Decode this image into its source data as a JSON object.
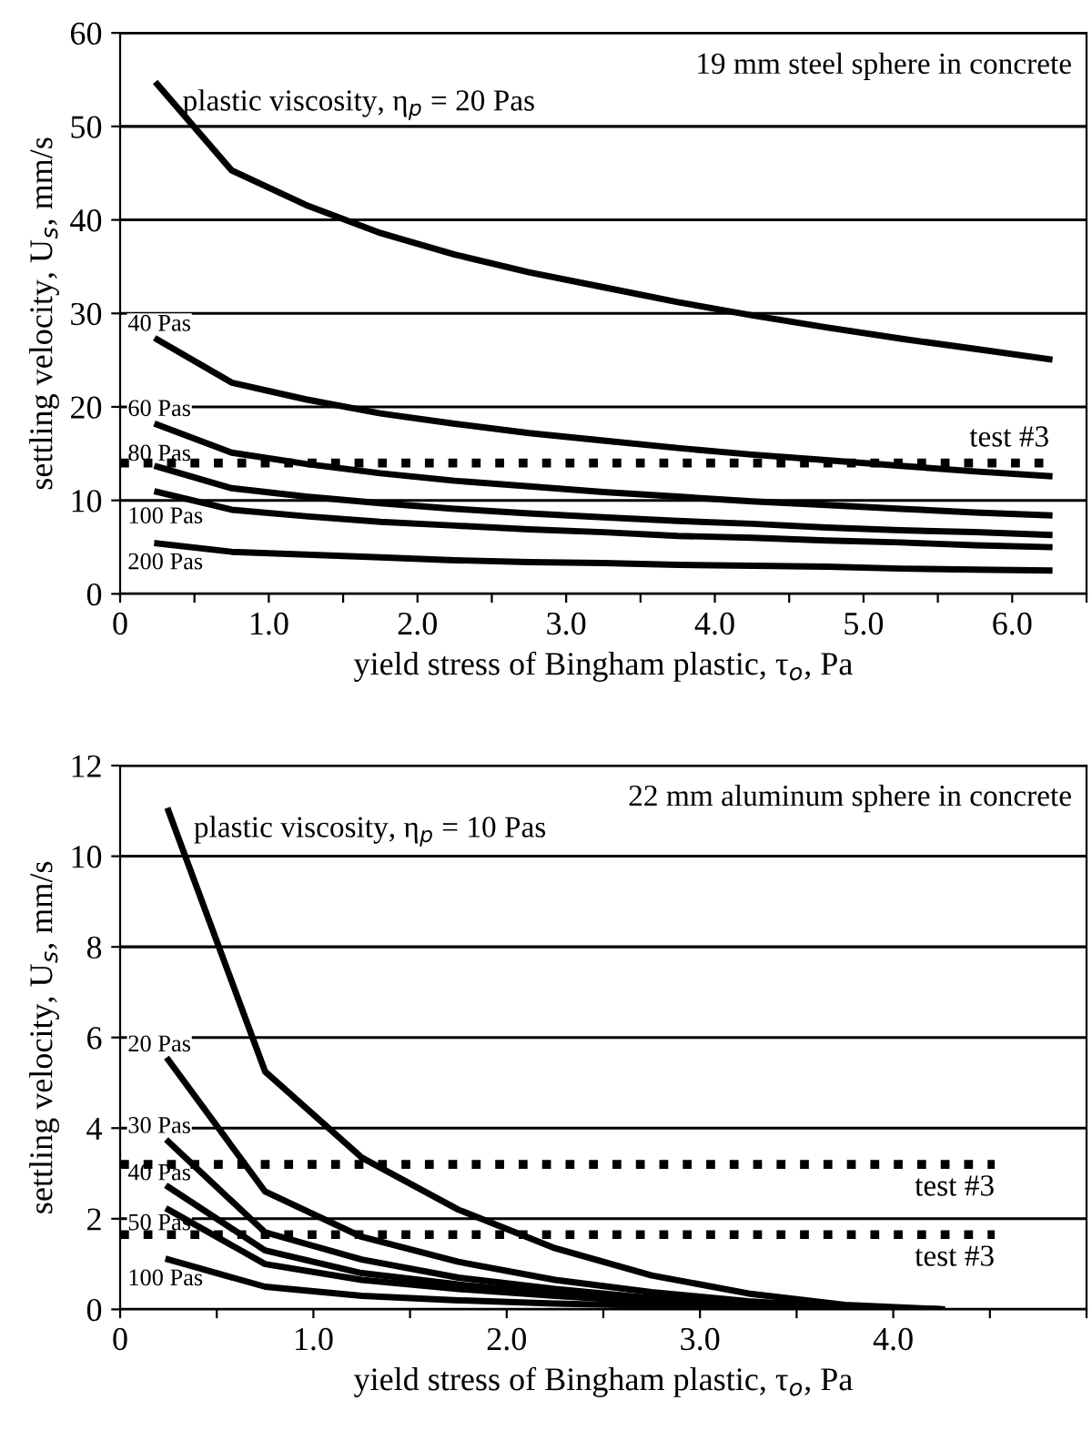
{
  "chart_data": [
    {
      "type": "line",
      "title": "19 mm steel sphere in concrete",
      "xlabel": "yield stress of Bingham plastic, τ$_{o}$, Pa",
      "ylabel": "settling velocity, U$_{s}$, mm/s",
      "x": [
        0.25,
        0.75,
        1.25,
        1.75,
        2.25,
        2.75,
        3.25,
        3.75,
        4.25,
        4.75,
        5.25,
        5.75,
        6.25
      ],
      "series": [
        {
          "name": "plastic viscosity, η$_{p}$ = 20 Pas",
          "color": "#000000",
          "values": [
            54.5,
            45.3,
            41.6,
            38.6,
            36.3,
            34.4,
            32.8,
            31.2,
            29.8,
            28.5,
            27.3,
            26.2,
            25.1
          ]
        },
        {
          "name": "40 Pas",
          "color": "#000000",
          "values": [
            27.2,
            22.6,
            20.8,
            19.3,
            18.2,
            17.2,
            16.4,
            15.6,
            14.9,
            14.3,
            13.7,
            13.1,
            12.6
          ]
        },
        {
          "name": "60 Pas",
          "color": "#000000",
          "values": [
            18.1,
            15.1,
            13.9,
            12.9,
            12.1,
            11.5,
            10.9,
            10.4,
            9.9,
            9.5,
            9.1,
            8.7,
            8.4
          ]
        },
        {
          "name": "80 Pas",
          "color": "#000000",
          "values": [
            13.6,
            11.3,
            10.4,
            9.7,
            9.1,
            8.6,
            8.2,
            7.8,
            7.5,
            7.1,
            6.8,
            6.6,
            6.3
          ]
        },
        {
          "name": "100 Pas",
          "color": "#000000",
          "values": [
            10.9,
            9.0,
            8.3,
            7.7,
            7.3,
            6.9,
            6.6,
            6.2,
            6.0,
            5.7,
            5.5,
            5.2,
            5.0
          ]
        },
        {
          "name": "200 Pas",
          "color": "#000000",
          "values": [
            5.4,
            4.5,
            4.2,
            3.9,
            3.6,
            3.4,
            3.3,
            3.1,
            3.0,
            2.9,
            2.7,
            2.6,
            2.5
          ]
        }
      ],
      "xlim": [
        0,
        6.5
      ],
      "ylim": [
        0,
        60
      ],
      "xticks": [
        0,
        {
          "value": 0.5,
          "label": null
        },
        {
          "value": 1,
          "label": "1.0"
        },
        {
          "value": 1.5,
          "label": null
        },
        {
          "value": 2,
          "label": "2.0"
        },
        {
          "value": 2.5,
          "label": null
        },
        {
          "value": 3,
          "label": "3.0"
        },
        {
          "value": 3.5,
          "label": null
        },
        {
          "value": 4,
          "label": "4.0"
        },
        {
          "value": 4.5,
          "label": null
        },
        {
          "value": 5,
          "label": "5.0"
        },
        {
          "value": 5.5,
          "label": null
        },
        {
          "value": 6,
          "label": "6.0"
        },
        {
          "value": 6.5,
          "label": null
        }
      ],
      "yticks": [
        0,
        10,
        20,
        30,
        40,
        50,
        60
      ],
      "ref_lines": [
        {
          "axis": "y",
          "value": 14,
          "label": "test #3",
          "color": "#000000",
          "line_style": "dotted"
        }
      ],
      "grid": "y",
      "legend": false,
      "marker": "none",
      "line_style": "solid"
    },
    {
      "type": "line",
      "title": "22 mm aluminum sphere in concrete",
      "xlabel": "yield stress of Bingham plastic, τ$_{o}$, Pa",
      "ylabel": "settling velocity, U$_{s}$, mm/s",
      "x": [
        0.25,
        0.75,
        1.25,
        1.75,
        2.25,
        2.75,
        3.25,
        3.75,
        4.25
      ],
      "series": [
        {
          "name": "plastic viscosity, η$_{p}$ = 10 Pas",
          "color": "#000000",
          "values": [
            11.0,
            5.25,
            3.35,
            2.2,
            1.35,
            0.75,
            0.35,
            0.1,
            0.0
          ]
        },
        {
          "name": "20 Pas",
          "color": "#000000",
          "values": [
            5.5,
            2.6,
            1.6,
            1.05,
            0.65,
            0.38,
            0.18,
            0.05,
            0.0
          ]
        },
        {
          "name": "30 Pas",
          "color": "#000000",
          "values": [
            3.7,
            1.7,
            1.1,
            0.7,
            0.45,
            0.25,
            0.12,
            0.04,
            0.0
          ]
        },
        {
          "name": "40 Pas",
          "color": "#000000",
          "values": [
            2.7,
            1.3,
            0.8,
            0.55,
            0.35,
            0.2,
            0.1,
            0.03,
            0.0
          ]
        },
        {
          "name": "50 Pas",
          "color": "#000000",
          "values": [
            2.2,
            1.0,
            0.65,
            0.45,
            0.3,
            0.17,
            0.08,
            0.02,
            0.0
          ]
        },
        {
          "name": "100 Pas",
          "color": "#000000",
          "values": [
            1.1,
            0.5,
            0.3,
            0.2,
            0.13,
            0.08,
            0.04,
            0.01,
            0.0
          ]
        }
      ],
      "xlim": [
        0,
        5
      ],
      "ylim": [
        0,
        12
      ],
      "xticks": [
        0,
        {
          "value": 0.5,
          "label": null
        },
        {
          "value": 1,
          "label": "1.0"
        },
        {
          "value": 1.5,
          "label": null
        },
        {
          "value": 2,
          "label": "2.0"
        },
        {
          "value": 2.5,
          "label": null
        },
        {
          "value": 3,
          "label": "3.0"
        },
        {
          "value": 3.5,
          "label": null
        },
        {
          "value": 4,
          "label": "4.0"
        },
        {
          "value": 4.5,
          "label": null
        },
        {
          "value": 5,
          "label": null
        }
      ],
      "yticks": [
        0,
        2,
        4,
        6,
        8,
        10,
        12
      ],
      "ref_lines": [
        {
          "axis": "y",
          "value": 3.2,
          "label": "test #3",
          "color": "#000000",
          "line_style": "dotted"
        },
        {
          "axis": "y",
          "value": 1.65,
          "label": "test #3",
          "color": "#000000",
          "line_style": "dotted"
        }
      ],
      "grid": "y",
      "legend": false,
      "marker": "none",
      "line_style": "solid"
    }
  ]
}
